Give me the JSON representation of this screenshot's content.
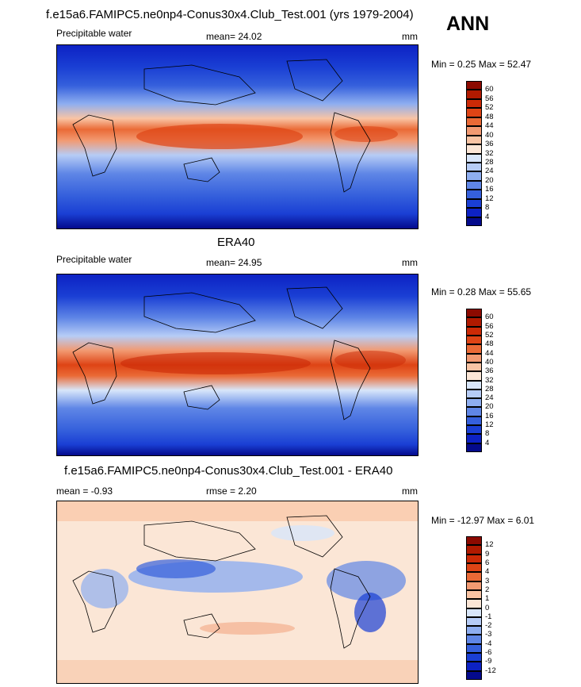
{
  "season": "ANN",
  "panel1": {
    "title": "f.e15a6.FAMIPC5.ne0np4-Conus30x4.Club_Test.001 (yrs 1979-2004)",
    "left": "Precipitable water",
    "center": "mean=  24.02",
    "right": "mm",
    "minmax": "Min =   0.25 Max =  52.47"
  },
  "panel2": {
    "title": "ERA40",
    "left": "Precipitable water",
    "center": "mean=  24.95",
    "right": "mm",
    "minmax": "Min =   0.28 Max =  55.65"
  },
  "panel3": {
    "title": "f.e15a6.FAMIPC5.ne0np4-Conus30x4.Club_Test.001 - ERA40",
    "left": "mean =  -0.93",
    "center": "rmse =   2.20",
    "right": "mm",
    "minmax": "Min = -12.97 Max =   6.01"
  },
  "colorbar_abs": {
    "labels": [
      "60",
      "56",
      "52",
      "48",
      "44",
      "40",
      "36",
      "32",
      "28",
      "24",
      "20",
      "16",
      "12",
      "8",
      "4"
    ],
    "colors": [
      "#8c0a00",
      "#b01a00",
      "#cc2a06",
      "#de4415",
      "#ea6a36",
      "#f29a72",
      "#f9c4a4",
      "#fbe6d6",
      "#d8e6fa",
      "#b6ccf6",
      "#8eaef0",
      "#5f86e6",
      "#3560dc",
      "#1a3fd4",
      "#0d22c4",
      "#040a8c"
    ]
  },
  "colorbar_diff": {
    "labels": [
      "12",
      "9",
      "6",
      "4",
      "3",
      "2",
      "1",
      "0",
      "-1",
      "-2",
      "-3",
      "-4",
      "-6",
      "-9",
      "-12"
    ],
    "colors": [
      "#8c0a00",
      "#b01a00",
      "#cc2a06",
      "#de4415",
      "#ea6a36",
      "#f29a72",
      "#f9c4a4",
      "#fbe6d6",
      "#d8e6fa",
      "#b6ccf6",
      "#8eaef0",
      "#5f86e6",
      "#3560dc",
      "#1a3fd4",
      "#0d22c4",
      "#040a8c"
    ]
  },
  "chart_data": [
    {
      "type": "heatmap",
      "title": "f.e15a6.FAMIPC5.ne0np4-Conus30x4.Club_Test.001 (yrs 1979-2004)",
      "variable": "Precipitable water",
      "units": "mm",
      "mean": 24.02,
      "min": 0.25,
      "max": 52.47,
      "levels": [
        4,
        8,
        12,
        16,
        20,
        24,
        28,
        32,
        36,
        40,
        44,
        48,
        52,
        56,
        60
      ]
    },
    {
      "type": "heatmap",
      "title": "ERA40",
      "variable": "Precipitable water",
      "units": "mm",
      "mean": 24.95,
      "min": 0.28,
      "max": 55.65,
      "levels": [
        4,
        8,
        12,
        16,
        20,
        24,
        28,
        32,
        36,
        40,
        44,
        48,
        52,
        56,
        60
      ]
    },
    {
      "type": "heatmap",
      "title": "f.e15a6.FAMIPC5.ne0np4-Conus30x4.Club_Test.001 - ERA40",
      "units": "mm",
      "mean": -0.93,
      "rmse": 2.2,
      "min": -12.97,
      "max": 6.01,
      "levels": [
        -12,
        -9,
        -6,
        -4,
        -3,
        -2,
        -1,
        0,
        1,
        2,
        3,
        4,
        6,
        9,
        12
      ]
    }
  ]
}
